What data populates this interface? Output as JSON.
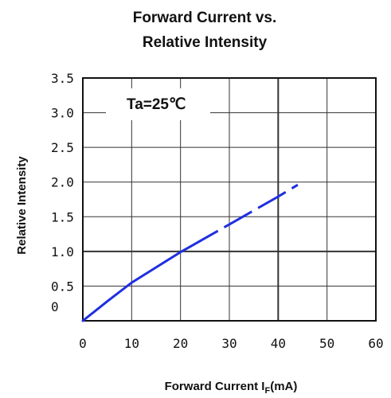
{
  "chart_data": {
    "type": "line",
    "title_lines": [
      "Forward Current vs.",
      "Relative Intensity"
    ],
    "xlabel": {
      "main": "Forward Current I",
      "sub": "F",
      "suffix": "(mA)"
    },
    "ylabel": "Relative Intensity",
    "annotation": "Ta=25℃",
    "xlim": [
      0,
      60
    ],
    "ylim": [
      0,
      3.5
    ],
    "x_ticks": [
      0,
      10,
      20,
      30,
      40,
      50,
      60
    ],
    "y_ticks": [
      3.5,
      3.0,
      2.5,
      2.0,
      1.5,
      1.0,
      0.5,
      0
    ],
    "y_tick_labels": [
      "3.5",
      "3.0",
      "2.5",
      "2.0",
      "1.5",
      "1.0",
      "0.5",
      "0"
    ],
    "grid": true,
    "series": [
      {
        "color": "#1f2fe0",
        "x": [
          0,
          5,
          10,
          15,
          20,
          22,
          25,
          30,
          35,
          40,
          44
        ],
        "y": [
          0,
          0.28,
          0.55,
          0.77,
          0.99,
          1.07,
          1.19,
          1.39,
          1.59,
          1.79,
          1.96
        ],
        "solid_until_x": 22
      }
    ]
  }
}
